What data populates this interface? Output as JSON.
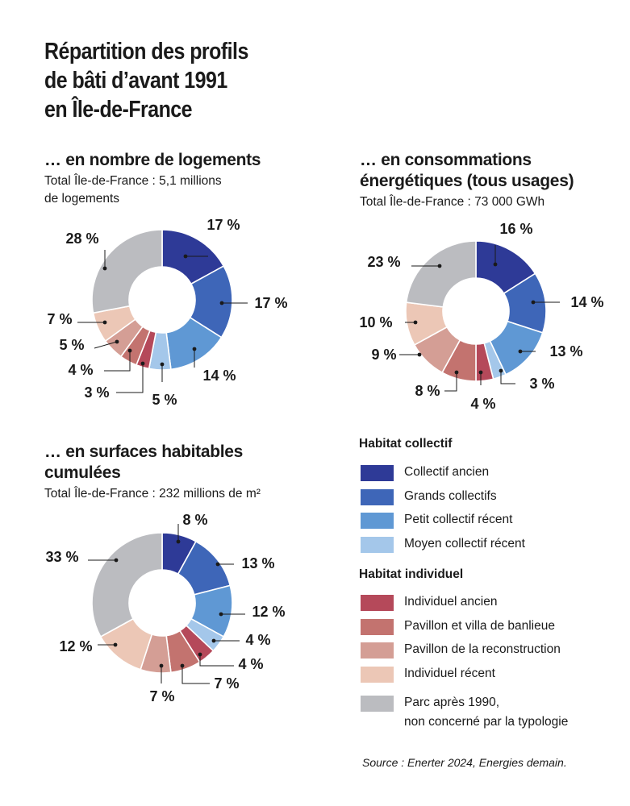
{
  "title_lines": [
    "Répartition des profils",
    "de bâti d’avant 1991",
    "en Île-de-France"
  ],
  "chart_data": [
    {
      "type": "pie",
      "title_lines": [
        "… en nombre de logements"
      ],
      "subtitle_lines": [
        "Total Île-de-France : 5,1 millions",
        "de logements"
      ],
      "categories": [
        "Collectif ancien",
        "Grands collectifs",
        "Petit collectif récent",
        "Moyen collectif récent",
        "Individuel ancien",
        "Pavillon et villa de banlieue",
        "Pavillon de la reconstruction",
        "Individuel récent",
        "Parc après 1990, non concerné par la typologie"
      ],
      "values": [
        17,
        17,
        14,
        5,
        3,
        4,
        5,
        7,
        28
      ],
      "labels": [
        "17 %",
        "17 %",
        "14 %",
        "5 %",
        "3 %",
        "4 %",
        "5 %",
        "7 %",
        "28 %"
      ]
    },
    {
      "type": "pie",
      "title_lines": [
        "… en consommations",
        "énergétiques (tous usages)"
      ],
      "subtitle_lines": [
        "Total Île-de-France : 73 000 GWh"
      ],
      "categories": [
        "Collectif ancien",
        "Grands collectifs",
        "Petit collectif récent",
        "Moyen collectif récent",
        "Individuel ancien",
        "Pavillon et villa de banlieue",
        "Pavillon de la reconstruction",
        "Individuel récent",
        "Parc après 1990, non concerné par la typologie"
      ],
      "values": [
        16,
        14,
        13,
        3,
        4,
        8,
        9,
        10,
        23
      ],
      "labels": [
        "16 %",
        "14 %",
        "13 %",
        "3 %",
        "4 %",
        "8 %",
        "9 %",
        "10 %",
        "23 %"
      ]
    },
    {
      "type": "pie",
      "title_lines": [
        "… en surfaces habitables",
        "cumulées"
      ],
      "subtitle_lines": [
        "Total Île-de-France : 232 millions de m²"
      ],
      "categories": [
        "Collectif ancien",
        "Grands collectifs",
        "Petit collectif récent",
        "Moyen collectif récent",
        "Individuel ancien",
        "Pavillon et villa de banlieue",
        "Pavillon de la reconstruction",
        "Individuel récent",
        "Parc après 1990, non concerné par la typologie"
      ],
      "values": [
        8,
        13,
        12,
        4,
        4,
        7,
        7,
        12,
        33
      ],
      "labels": [
        "8 %",
        "13 %",
        "12 %",
        "4 %",
        "4 %",
        "7 %",
        "7 %",
        "12 %",
        "33 %"
      ]
    }
  ],
  "legend": {
    "groups": [
      {
        "title": "Habitat collectif",
        "items": [
          {
            "label_lines": [
              "Collectif ancien"
            ],
            "color": "#2e3a97"
          },
          {
            "label_lines": [
              "Grands collectifs"
            ],
            "color": "#3e66b8"
          },
          {
            "label_lines": [
              "Petit collectif récent"
            ],
            "color": "#5f98d4"
          },
          {
            "label_lines": [
              "Moyen collectif récent"
            ],
            "color": "#a4c7ea"
          }
        ]
      },
      {
        "title": "Habitat individuel",
        "items": [
          {
            "label_lines": [
              "Individuel ancien"
            ],
            "color": "#b5495a"
          },
          {
            "label_lines": [
              "Pavillon et villa de banlieue"
            ],
            "color": "#c3736f"
          },
          {
            "label_lines": [
              "Pavillon de la reconstruction"
            ],
            "color": "#d49e95"
          },
          {
            "label_lines": [
              "Individuel récent"
            ],
            "color": "#ecc7b6"
          }
        ]
      },
      {
        "title": "",
        "items": [
          {
            "label_lines": [
              "Parc après 1990,",
              "non concerné par la typologie"
            ],
            "color": "#bbbcc0"
          }
        ]
      }
    ]
  },
  "source": "Source : Enerter 2024, Energies demain."
}
